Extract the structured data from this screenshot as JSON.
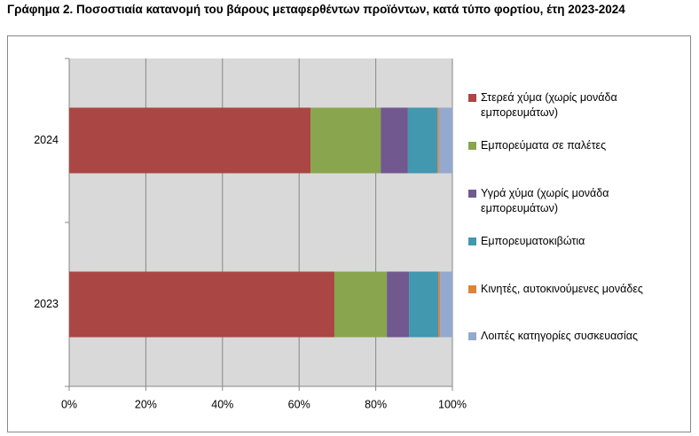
{
  "chart_data": {
    "type": "stacked_barh",
    "title": "Γράφημα 2. Ποσοστιαία κατανομή του βάρους μεταφερθέντων προϊόντων, κατά τύπο φορτίου, έτη 2023-2024",
    "categories": [
      "2024",
      "2023"
    ],
    "series": [
      {
        "name": "Στερεά χύμα (χωρίς μονάδα εμπορευμάτων)",
        "color": "#aa4643",
        "values": [
          63.0,
          69.2
        ]
      },
      {
        "name": "Εμπορεύματα σε παλέτες",
        "color": "#89a54e",
        "values": [
          18.3,
          13.7
        ]
      },
      {
        "name": "Υγρά χύμα (χωρίς μονάδα εμπορευμάτων)",
        "color": "#71588f",
        "values": [
          7.1,
          5.8
        ]
      },
      {
        "name": "Εμπορευματοκιβώτια",
        "color": "#4198af",
        "values": [
          7.7,
          7.6
        ]
      },
      {
        "name": "Κινητές, αυτοκινούμενες μονάδες",
        "color": "#db843d",
        "values": [
          0.4,
          0.5
        ]
      },
      {
        "name": "Λοιπές κατηγορίες συσκευασίας",
        "color": "#93a9cf",
        "values": [
          3.5,
          3.2
        ]
      }
    ],
    "xlim": [
      0,
      100
    ],
    "xticks": [
      {
        "value": 0,
        "label": "0%"
      },
      {
        "value": 20,
        "label": "20%"
      },
      {
        "value": 40,
        "label": "40%"
      },
      {
        "value": 60,
        "label": "60%"
      },
      {
        "value": 80,
        "label": "80%"
      },
      {
        "value": 100,
        "label": "100%"
      }
    ],
    "grid": true,
    "legend": "right"
  }
}
